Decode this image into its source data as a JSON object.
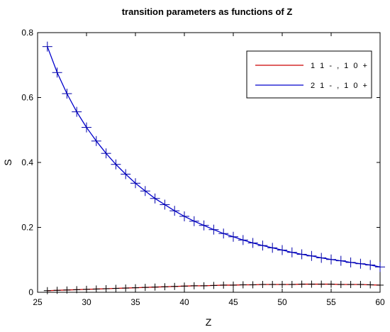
{
  "chart_data": {
    "type": "line",
    "title": "transition parameters as functions of Z",
    "xlabel": "Z",
    "ylabel": "S",
    "xlim": [
      25,
      60
    ],
    "ylim": [
      0,
      0.8
    ],
    "xticks": [
      25,
      30,
      35,
      40,
      45,
      50,
      55,
      60
    ],
    "xtick_labels": [
      "25",
      "30",
      "35",
      "40",
      "45",
      "50",
      "55",
      "60"
    ],
    "yticks": [
      0,
      0.2,
      0.4,
      0.6,
      0.8
    ],
    "ytick_labels": [
      "0",
      "0.2",
      "0.4",
      "0.6",
      "0.8"
    ],
    "grid": false,
    "legend_position": "top-right",
    "x": [
      26,
      27,
      28,
      29,
      30,
      31,
      32,
      33,
      34,
      35,
      36,
      37,
      38,
      39,
      40,
      41,
      42,
      43,
      44,
      45,
      46,
      47,
      48,
      49,
      50,
      51,
      52,
      53,
      54,
      55,
      56,
      57,
      58,
      59,
      60
    ],
    "series": [
      {
        "name": "1 1 - , 1 0 +",
        "color": "#cc0000",
        "marker_color": "#000000",
        "values": [
          0.005,
          0.006,
          0.007,
          0.008,
          0.009,
          0.01,
          0.011,
          0.012,
          0.013,
          0.014,
          0.015,
          0.016,
          0.017,
          0.018,
          0.019,
          0.02,
          0.02,
          0.021,
          0.022,
          0.022,
          0.023,
          0.023,
          0.024,
          0.024,
          0.024,
          0.024,
          0.025,
          0.025,
          0.025,
          0.025,
          0.024,
          0.024,
          0.024,
          0.023,
          0.022
        ]
      },
      {
        "name": "2 1 - , 1 0 +",
        "color": "#0000cc",
        "marker_color": "#0000aa",
        "values": [
          0.757,
          0.677,
          0.612,
          0.556,
          0.508,
          0.466,
          0.428,
          0.394,
          0.364,
          0.336,
          0.312,
          0.289,
          0.27,
          0.251,
          0.234,
          0.219,
          0.206,
          0.193,
          0.181,
          0.171,
          0.161,
          0.152,
          0.144,
          0.137,
          0.13,
          0.123,
          0.117,
          0.112,
          0.106,
          0.101,
          0.097,
          0.092,
          0.088,
          0.084,
          0.078
        ]
      }
    ]
  }
}
